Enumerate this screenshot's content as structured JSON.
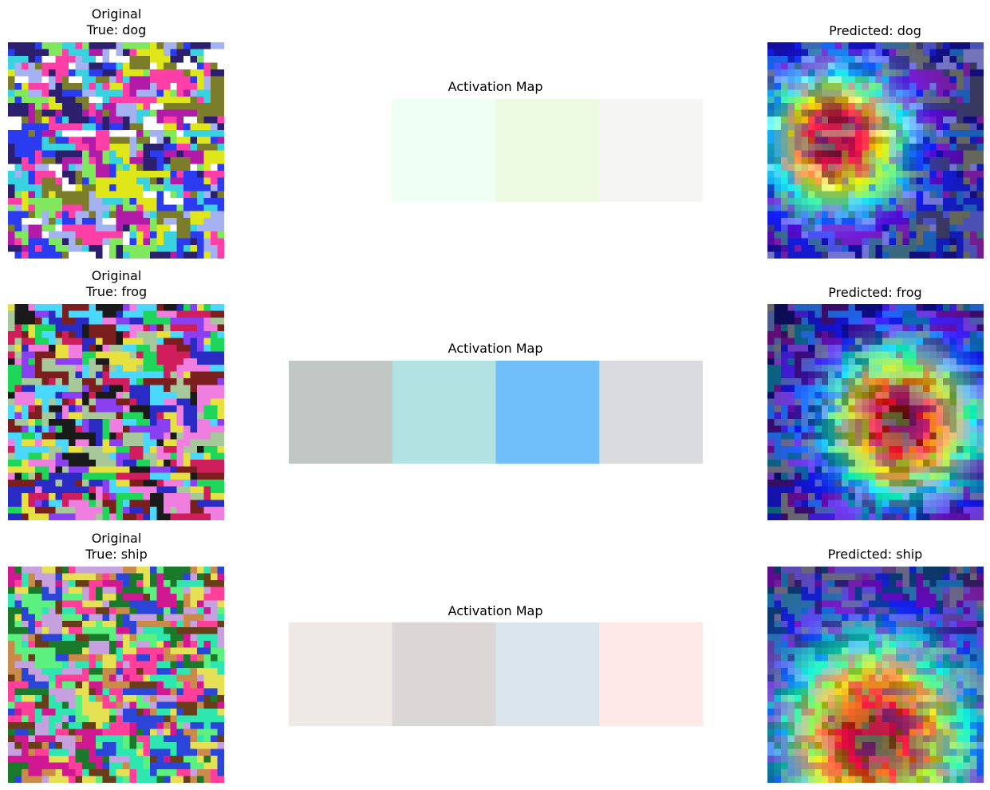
{
  "chart_data": {
    "type": "heatmap",
    "rows": [
      {
        "original": {
          "title_line1": "Original",
          "title_line2": "True: dog",
          "palette": [
            "#a4b2f2",
            "#7fe85c",
            "#2b1f6e",
            "#dfe61a",
            "#b21ba8",
            "#2b3cf0",
            "#ff3fa8",
            "#39d2e0",
            "#7c7d2a",
            "#ffffff"
          ]
        },
        "activation_map": {
          "title": "Activation Map",
          "cells": [
            "#f0fff4",
            "#eefbe3",
            "#f5f5f4"
          ]
        },
        "overlay": {
          "title": "Predicted: dog",
          "hot": [
            0.32,
            0.45
          ],
          "spread": 0.22
        }
      },
      {
        "original": {
          "title_line1": "Original",
          "title_line2": "True: frog",
          "palette": [
            "#f07ee0",
            "#1ed65a",
            "#2a2ac4",
            "#e6e040",
            "#d01d5b",
            "#4ad8ff",
            "#8a3ff0",
            "#7a1e1e",
            "#a7c89a",
            "#1a1a1a"
          ]
        },
        "activation_map": {
          "title": "Activation Map",
          "cells": [
            "#c0c7c5",
            "#b2e2e1",
            "#70bff9",
            "#dadbde"
          ]
        },
        "overlay": {
          "title": "Predicted: frog",
          "hot": [
            0.62,
            0.55
          ],
          "spread": 0.24
        }
      },
      {
        "original": {
          "title_line1": "Original",
          "title_line2": "True: ship",
          "palette": [
            "#c98a4a",
            "#2ee6b0",
            "#e6e055",
            "#d01890",
            "#2a45d8",
            "#6a3d1a",
            "#5cf07e",
            "#ff3f9a",
            "#1a7a2a",
            "#c7a0e0"
          ]
        },
        "activation_map": {
          "title": "Activation Map",
          "cells": [
            "#eee9e4",
            "#dad7d6",
            "#dbe5ee",
            "#ffe8e7"
          ]
        },
        "overlay": {
          "title": "Predicted: ship",
          "hot": [
            0.5,
            0.78
          ],
          "spread": 0.3
        }
      }
    ]
  }
}
